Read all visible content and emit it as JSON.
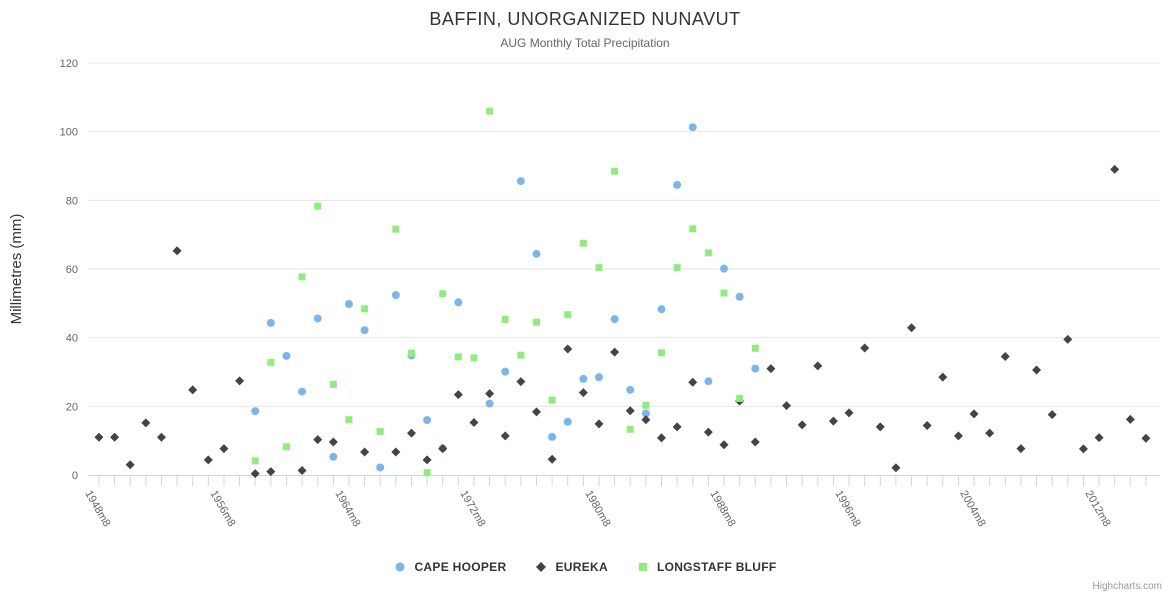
{
  "header": {
    "title": "BAFFIN, UNORGANIZED NUNAVUT",
    "subtitle": "AUG Monthly Total Precipitation"
  },
  "credits_label": "Highcharts.com",
  "colors": {
    "cape_hooper": "#7cb5ec",
    "eureka": "#434348",
    "longstaff_bluff": "#90ed7d",
    "grid_line": "#e6e6e6",
    "axis_line": "#ccd6eb",
    "tick_mark": "#ccd6eb",
    "axis_label_text": "#666666",
    "title_text": "#333333"
  },
  "chart_data": {
    "type": "scatter",
    "title": "BAFFIN, UNORGANIZED NUNAVUT",
    "subtitle": "AUG Monthly Total Precipitation",
    "ylabel": "Millimetres (mm)",
    "xlabel": "",
    "ylim": [
      0,
      120
    ],
    "y_ticks": [
      0,
      20,
      40,
      60,
      80,
      100,
      120
    ],
    "xlim_years": [
      1947.3,
      2015.9
    ],
    "x_minor_tick_years": {
      "start": 1948,
      "end": 2015,
      "interval": 1
    },
    "x_label_years": [
      1948,
      1956,
      1964,
      1972,
      1980,
      1988,
      1996,
      2004,
      2012
    ],
    "x_label_suffix": "m8",
    "x_axis_labels": [
      "1948m8",
      "1956m8",
      "1964m8",
      "1972m8",
      "1980m8",
      "1988m8",
      "1996m8",
      "2004m8",
      "2012m8"
    ],
    "grid": true,
    "legend_position": "bottom-center",
    "series": [
      {
        "name": "CAPE HOOPER",
        "marker": "circle",
        "color": "#7cb5ec",
        "points": [
          [
            1958,
            18.6
          ],
          [
            1959,
            44.3
          ],
          [
            1960,
            34.7
          ],
          [
            1961,
            24.3
          ],
          [
            1962,
            45.6
          ],
          [
            1963,
            5.3
          ],
          [
            1964,
            49.8
          ],
          [
            1965,
            42.2
          ],
          [
            1966,
            2.2
          ],
          [
            1967,
            52.4
          ],
          [
            1968,
            34.8
          ],
          [
            1969,
            16.0
          ],
          [
            1970,
            7.8
          ],
          [
            1971,
            50.3
          ],
          [
            1973,
            20.8
          ],
          [
            1974,
            30.1
          ],
          [
            1975,
            85.6
          ],
          [
            1976,
            64.4
          ],
          [
            1977,
            11.1
          ],
          [
            1978,
            15.5
          ],
          [
            1979,
            28.0
          ],
          [
            1980,
            28.5
          ],
          [
            1981,
            45.4
          ],
          [
            1982,
            24.8
          ],
          [
            1983,
            17.9
          ],
          [
            1984,
            48.3
          ],
          [
            1985,
            84.5
          ],
          [
            1986,
            101.3
          ],
          [
            1987,
            27.3
          ],
          [
            1988,
            60.1
          ],
          [
            1989,
            51.9
          ],
          [
            1990,
            31.0
          ]
        ]
      },
      {
        "name": "EUREKA",
        "marker": "diamond",
        "color": "#434348",
        "points": [
          [
            1948,
            11.0
          ],
          [
            1949,
            11.0
          ],
          [
            1950,
            3.0
          ],
          [
            1951,
            15.2
          ],
          [
            1952,
            11.0
          ],
          [
            1953,
            65.3
          ],
          [
            1954,
            24.8
          ],
          [
            1955,
            4.4
          ],
          [
            1956,
            7.7
          ],
          [
            1957,
            27.4
          ],
          [
            1958,
            0.4
          ],
          [
            1959,
            1.0
          ],
          [
            1961,
            1.3
          ],
          [
            1962,
            10.3
          ],
          [
            1963,
            9.6
          ],
          [
            1965,
            6.7
          ],
          [
            1967,
            6.7
          ],
          [
            1968,
            12.2
          ],
          [
            1969,
            4.4
          ],
          [
            1970,
            7.7
          ],
          [
            1971,
            23.4
          ],
          [
            1972,
            15.3
          ],
          [
            1973,
            23.7
          ],
          [
            1974,
            11.4
          ],
          [
            1975,
            27.2
          ],
          [
            1976,
            18.4
          ],
          [
            1977,
            4.6
          ],
          [
            1978,
            36.7
          ],
          [
            1979,
            24.0
          ],
          [
            1980,
            14.9
          ],
          [
            1981,
            35.8
          ],
          [
            1982,
            18.7
          ],
          [
            1983,
            16.1
          ],
          [
            1984,
            10.8
          ],
          [
            1985,
            14.0
          ],
          [
            1986,
            27.0
          ],
          [
            1987,
            12.5
          ],
          [
            1988,
            8.8
          ],
          [
            1989,
            21.5
          ],
          [
            1990,
            9.6
          ],
          [
            1991,
            31.0
          ],
          [
            1992,
            20.2
          ],
          [
            1993,
            14.6
          ],
          [
            1994,
            31.8
          ],
          [
            1995,
            15.7
          ],
          [
            1996,
            18.1
          ],
          [
            1997,
            37.0
          ],
          [
            1998,
            14.0
          ],
          [
            1999,
            2.1
          ],
          [
            2000,
            42.9
          ],
          [
            2001,
            14.4
          ],
          [
            2002,
            28.5
          ],
          [
            2003,
            11.4
          ],
          [
            2004,
            17.8
          ],
          [
            2005,
            12.2
          ],
          [
            2006,
            34.5
          ],
          [
            2007,
            7.7
          ],
          [
            2008,
            30.6
          ],
          [
            2009,
            17.6
          ],
          [
            2010,
            39.5
          ],
          [
            2011,
            7.6
          ],
          [
            2012,
            10.9
          ],
          [
            2013,
            89.0
          ],
          [
            2014,
            16.2
          ],
          [
            2015,
            10.7
          ]
        ]
      },
      {
        "name": "LONGSTAFF BLUFF",
        "marker": "square",
        "color": "#90ed7d",
        "points": [
          [
            1958,
            4.1
          ],
          [
            1959,
            32.8
          ],
          [
            1960,
            8.2
          ],
          [
            1961,
            57.7
          ],
          [
            1962,
            78.3
          ],
          [
            1963,
            26.4
          ],
          [
            1964,
            16.1
          ],
          [
            1965,
            48.4
          ],
          [
            1966,
            12.7
          ],
          [
            1967,
            71.6
          ],
          [
            1968,
            35.5
          ],
          [
            1969,
            0.7
          ],
          [
            1970,
            52.8
          ],
          [
            1971,
            34.4
          ],
          [
            1972,
            34.1
          ],
          [
            1973,
            106.0
          ],
          [
            1974,
            45.3
          ],
          [
            1975,
            34.9
          ],
          [
            1976,
            44.5
          ],
          [
            1977,
            21.8
          ],
          [
            1978,
            46.7
          ],
          [
            1979,
            67.5
          ],
          [
            1980,
            60.4
          ],
          [
            1981,
            88.5
          ],
          [
            1982,
            13.3
          ],
          [
            1983,
            20.3
          ],
          [
            1984,
            35.6
          ],
          [
            1985,
            60.4
          ],
          [
            1986,
            71.7
          ],
          [
            1987,
            64.7
          ],
          [
            1988,
            53.0
          ],
          [
            1989,
            22.3
          ],
          [
            1990,
            36.9
          ]
        ]
      }
    ]
  }
}
